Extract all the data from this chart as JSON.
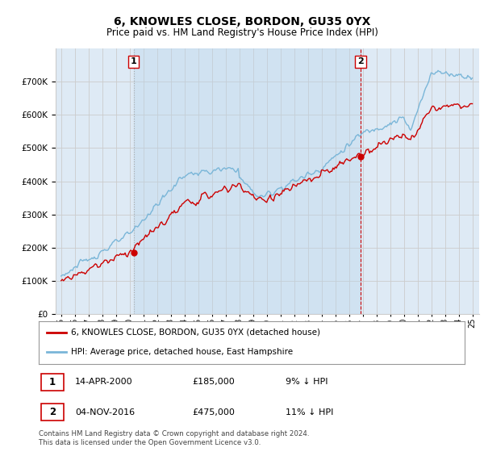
{
  "title": "6, KNOWLES CLOSE, BORDON, GU35 0YX",
  "subtitle": "Price paid vs. HM Land Registry's House Price Index (HPI)",
  "legend_line1": "6, KNOWLES CLOSE, BORDON, GU35 0YX (detached house)",
  "legend_line2": "HPI: Average price, detached house, East Hampshire",
  "annotation1_date": "14-APR-2000",
  "annotation1_price": "£185,000",
  "annotation1_hpi": "9% ↓ HPI",
  "annotation2_date": "04-NOV-2016",
  "annotation2_price": "£475,000",
  "annotation2_hpi": "11% ↓ HPI",
  "footer": "Contains HM Land Registry data © Crown copyright and database right 2024.\nThis data is licensed under the Open Government Licence v3.0.",
  "hpi_color": "#7ab6d8",
  "price_color": "#cc0000",
  "vline1_color": "#aaaaaa",
  "vline2_color": "#cc0000",
  "grid_color": "#cccccc",
  "bg_color": "#ffffff",
  "plot_bg_color": "#deeaf5",
  "shade_color": "#cce0f0",
  "ylim": [
    0,
    800000
  ],
  "yticks": [
    0,
    100000,
    200000,
    300000,
    400000,
    500000,
    600000,
    700000
  ],
  "sale1_year": 2000.29,
  "sale1_price": 185000,
  "sale2_year": 2016.84,
  "sale2_price": 475000
}
